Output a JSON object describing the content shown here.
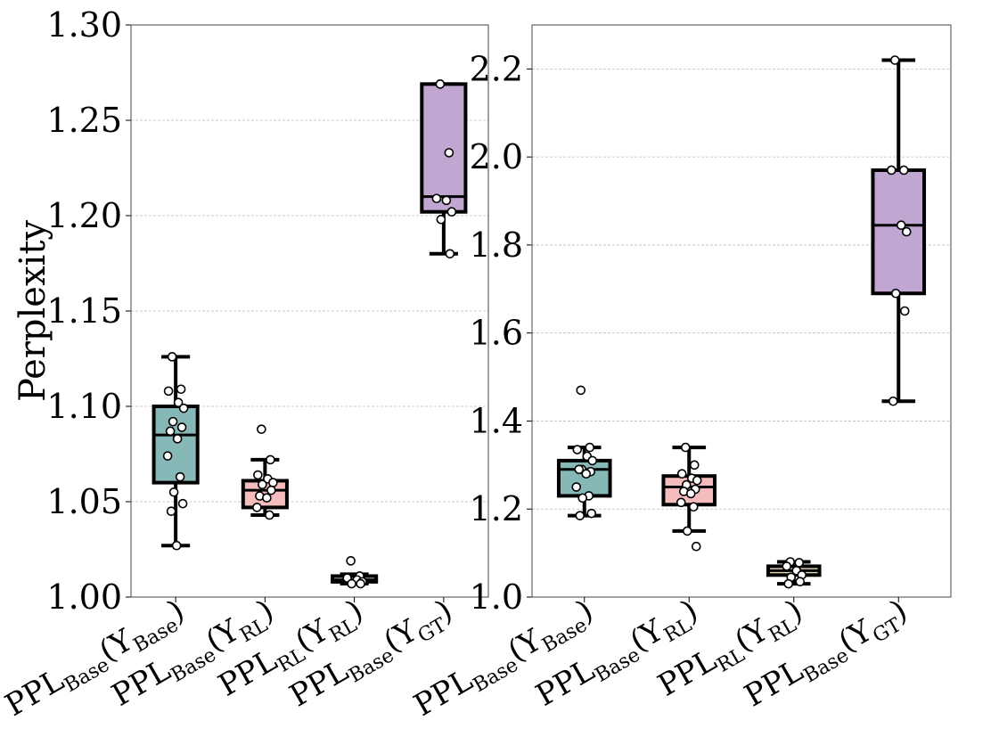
{
  "chart_data": [
    {
      "type": "box",
      "ylabel": "Perplexity",
      "ylim": [
        1.0,
        1.3
      ],
      "yticks": [
        "1.00",
        "1.05",
        "1.10",
        "1.15",
        "1.20",
        "1.25",
        "1.30"
      ],
      "grid": true,
      "categories": [
        {
          "main": "PPL",
          "sub": "Base",
          "arg": "Y",
          "argsub": "Base"
        },
        {
          "main": "PPL",
          "sub": "Base",
          "arg": "Y",
          "argsub": "RL"
        },
        {
          "main": "PPL",
          "sub": "RL",
          "arg": "Y",
          "argsub": "RL"
        },
        {
          "main": "PPL",
          "sub": "Base",
          "arg": "Y",
          "argsub": "GT"
        }
      ],
      "boxes": [
        {
          "color": "#86b8b7",
          "q1": 1.06,
          "median": 1.085,
          "q3": 1.1,
          "whislo": 1.027,
          "whishi": 1.126,
          "points": [
            1.126,
            1.109,
            1.108,
            1.102,
            1.099,
            1.092,
            1.089,
            1.087,
            1.083,
            1.074,
            1.063,
            1.055,
            1.049,
            1.045,
            1.027
          ]
        },
        {
          "color": "#f4bcbd",
          "q1": 1.047,
          "median": 1.056,
          "q3": 1.061,
          "whislo": 1.043,
          "whishi": 1.072,
          "points": [
            1.088,
            1.072,
            1.064,
            1.062,
            1.06,
            1.059,
            1.056,
            1.053,
            1.052,
            1.047,
            1.043
          ]
        },
        {
          "color": "#e3d3b4",
          "q1": 1.008,
          "median": 1.009,
          "q3": 1.011,
          "whislo": 1.007,
          "whishi": 1.012,
          "points": [
            1.019,
            1.011,
            1.01,
            1.009,
            1.008,
            1.007,
            1.007
          ]
        },
        {
          "color": "#c0a6d1",
          "q1": 1.202,
          "median": 1.21,
          "q3": 1.269,
          "whislo": 1.18,
          "whishi": 1.269,
          "points": [
            1.269,
            1.233,
            1.209,
            1.208,
            1.202,
            1.198,
            1.18
          ]
        }
      ]
    },
    {
      "type": "box",
      "ylabel": "",
      "ylim": [
        1.0,
        2.3
      ],
      "yticks": [
        "1.0",
        "1.2",
        "1.4",
        "1.6",
        "1.8",
        "2.0",
        "2.2"
      ],
      "grid": true,
      "categories": [
        {
          "main": "PPL",
          "sub": "Base",
          "arg": "Y",
          "argsub": "Base"
        },
        {
          "main": "PPL",
          "sub": "Base",
          "arg": "Y",
          "argsub": "RL"
        },
        {
          "main": "PPL",
          "sub": "RL",
          "arg": "Y",
          "argsub": "RL"
        },
        {
          "main": "PPL",
          "sub": "Base",
          "arg": "Y",
          "argsub": "GT"
        }
      ],
      "boxes": [
        {
          "color": "#86b8b7",
          "q1": 1.23,
          "median": 1.29,
          "q3": 1.31,
          "whislo": 1.185,
          "whishi": 1.34,
          "points": [
            1.47,
            1.34,
            1.335,
            1.32,
            1.31,
            1.29,
            1.285,
            1.29,
            1.28,
            1.25,
            1.23,
            1.225,
            1.19,
            1.185
          ]
        },
        {
          "color": "#f4bcbd",
          "q1": 1.21,
          "median": 1.25,
          "q3": 1.275,
          "whislo": 1.15,
          "whishi": 1.34,
          "points": [
            1.34,
            1.3,
            1.28,
            1.27,
            1.265,
            1.255,
            1.245,
            1.24,
            1.235,
            1.215,
            1.205,
            1.15,
            1.115
          ]
        },
        {
          "color": "#e3d3b4",
          "q1": 1.05,
          "median": 1.06,
          "q3": 1.07,
          "whislo": 1.03,
          "whishi": 1.08,
          "points": [
            1.08,
            1.078,
            1.07,
            1.06,
            1.05,
            1.045,
            1.035,
            1.03
          ]
        },
        {
          "color": "#c0a6d1",
          "q1": 1.69,
          "median": 1.845,
          "q3": 1.97,
          "whislo": 1.445,
          "whishi": 2.22,
          "points": [
            2.22,
            1.97,
            1.97,
            1.845,
            1.83,
            1.69,
            1.65,
            1.445
          ]
        }
      ]
    }
  ]
}
